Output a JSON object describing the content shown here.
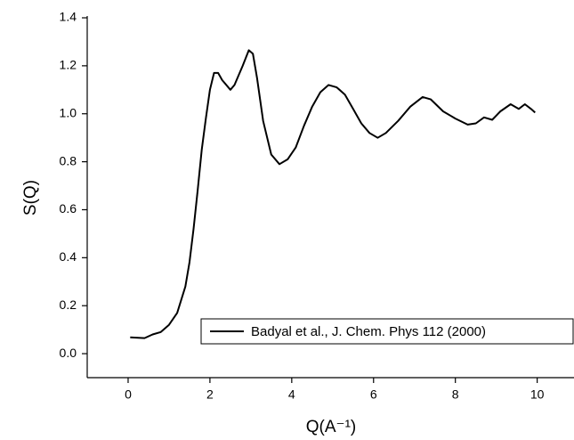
{
  "chart_data": {
    "type": "line",
    "x_label": "Q(A⁻¹)",
    "y_label": "S(Q)",
    "x": [
      0.05,
      0.4,
      0.6,
      0.8,
      1.0,
      1.2,
      1.4,
      1.5,
      1.6,
      1.7,
      1.8,
      1.9,
      2.0,
      2.1,
      2.2,
      2.3,
      2.5,
      2.6,
      2.8,
      2.95,
      3.05,
      3.15,
      3.3,
      3.5,
      3.7,
      3.9,
      4.1,
      4.3,
      4.5,
      4.7,
      4.9,
      5.1,
      5.3,
      5.5,
      5.7,
      5.9,
      6.1,
      6.3,
      6.6,
      6.9,
      7.2,
      7.4,
      7.7,
      8.0,
      8.3,
      8.5,
      8.7,
      8.9,
      9.1,
      9.35,
      9.55,
      9.7,
      9.85,
      9.95
    ],
    "series": [
      {
        "name": "Badyal et al., J. Chem. Phys 112 (2000)",
        "color": "#000000",
        "values": [
          0.068,
          0.065,
          0.08,
          0.09,
          0.12,
          0.17,
          0.28,
          0.38,
          0.52,
          0.68,
          0.85,
          0.98,
          1.1,
          1.17,
          1.17,
          1.14,
          1.1,
          1.12,
          1.2,
          1.265,
          1.25,
          1.15,
          0.97,
          0.83,
          0.79,
          0.81,
          0.86,
          0.95,
          1.03,
          1.09,
          1.12,
          1.11,
          1.08,
          1.02,
          0.96,
          0.92,
          0.9,
          0.92,
          0.97,
          1.03,
          1.07,
          1.06,
          1.01,
          0.98,
          0.955,
          0.96,
          0.985,
          0.975,
          1.01,
          1.04,
          1.02,
          1.04,
          1.02,
          1.005
        ]
      }
    ],
    "xlim": [
      -1,
      10.9
    ],
    "xticks": [
      0,
      2,
      4,
      6,
      8,
      10
    ],
    "ylim": [
      -0.1,
      1.4
    ],
    "yticks": [
      {
        "value": 0,
        "label": "0.0"
      },
      0.2,
      0.4,
      0.6,
      0.8,
      {
        "value": 1,
        "label": "1.0"
      },
      1.2,
      1.4
    ],
    "legend": "lower-right"
  }
}
